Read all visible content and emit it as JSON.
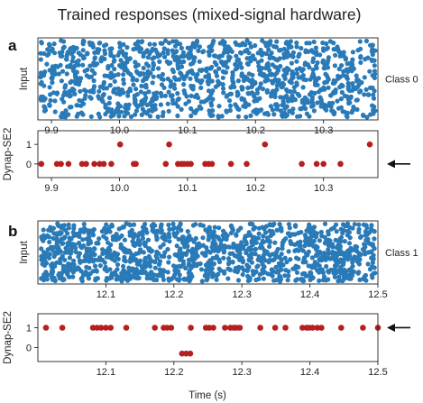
{
  "figure_title": "Trained responses (mixed-signal hardware)",
  "x_axis_label": "Time (s)",
  "chart_data": [
    {
      "type": "scatter",
      "panel": "a",
      "ylabel": "Input",
      "xlim": [
        9.88,
        10.38
      ],
      "xticks": [
        "9.9",
        "10.0",
        "10.1",
        "10.2",
        "10.3"
      ],
      "xtick_values": [
        9.9,
        10.0,
        10.1,
        10.2,
        10.3
      ],
      "class_label": "Class 0",
      "point_color": "#2a7ab8",
      "description_is_raster": true,
      "approx_point_count": 1200
    },
    {
      "type": "scatter",
      "panel": "a",
      "ylabel": "Dynap-SE2",
      "xlim": [
        9.88,
        10.38
      ],
      "ylim": [
        -0.7,
        1.7
      ],
      "xticks": [
        "9.9",
        "10.0",
        "10.1",
        "10.2",
        "10.3"
      ],
      "xtick_values": [
        9.9,
        10.0,
        10.1,
        10.2,
        10.3
      ],
      "yticks": [
        "0",
        "1"
      ],
      "ytick_values": [
        0,
        1
      ],
      "point_color": "#b51f1f",
      "arrow_at_value": 0,
      "series": [
        {
          "y": 0,
          "x": [
            9.885,
            9.908,
            9.914,
            9.925,
            9.945,
            9.951,
            9.963,
            9.971,
            9.977,
            9.988,
            10.021,
            10.024,
            10.068,
            10.086,
            10.091,
            10.095,
            10.1,
            10.105,
            10.126,
            10.131,
            10.136,
            10.164,
            10.187,
            10.268,
            10.29,
            10.3,
            10.325
          ]
        },
        {
          "y": 1,
          "x": [
            10.001,
            10.073,
            10.214,
            10.368
          ]
        }
      ]
    },
    {
      "type": "scatter",
      "panel": "b",
      "ylabel": "Input",
      "xlim": [
        12.0,
        12.5
      ],
      "xticks": [
        "12.1",
        "12.2",
        "12.3",
        "12.4",
        "12.5"
      ],
      "xtick_values": [
        12.1,
        12.2,
        12.3,
        12.4,
        12.5
      ],
      "class_label": "Class 1",
      "point_color": "#2a7ab8",
      "approx_point_count": 1300
    },
    {
      "type": "scatter",
      "panel": "b",
      "ylabel": "Dynap-SE2",
      "xlim": [
        12.0,
        12.5
      ],
      "ylim": [
        -0.7,
        1.7
      ],
      "xticks": [
        "12.1",
        "12.2",
        "12.3",
        "12.4",
        "12.5"
      ],
      "xtick_values": [
        12.1,
        12.2,
        12.3,
        12.4,
        12.5
      ],
      "yticks": [
        "0",
        "1"
      ],
      "ytick_values": [
        0,
        1
      ],
      "point_color": "#b51f1f",
      "arrow_at_value": 1,
      "series": [
        {
          "y": 1,
          "x": [
            12.012,
            12.036,
            12.081,
            12.087,
            12.093,
            12.1,
            12.107,
            12.13,
            12.172,
            12.185,
            12.19,
            12.196,
            12.225,
            12.247,
            12.252,
            12.258,
            12.275,
            12.283,
            12.288,
            12.292,
            12.297,
            12.327,
            12.349,
            12.364,
            12.389,
            12.395,
            12.399,
            12.404,
            12.411,
            12.417,
            12.446,
            12.478,
            12.5
          ]
        },
        {
          "y": -0.3,
          "x": [
            12.212,
            12.218,
            12.224
          ]
        }
      ]
    }
  ]
}
